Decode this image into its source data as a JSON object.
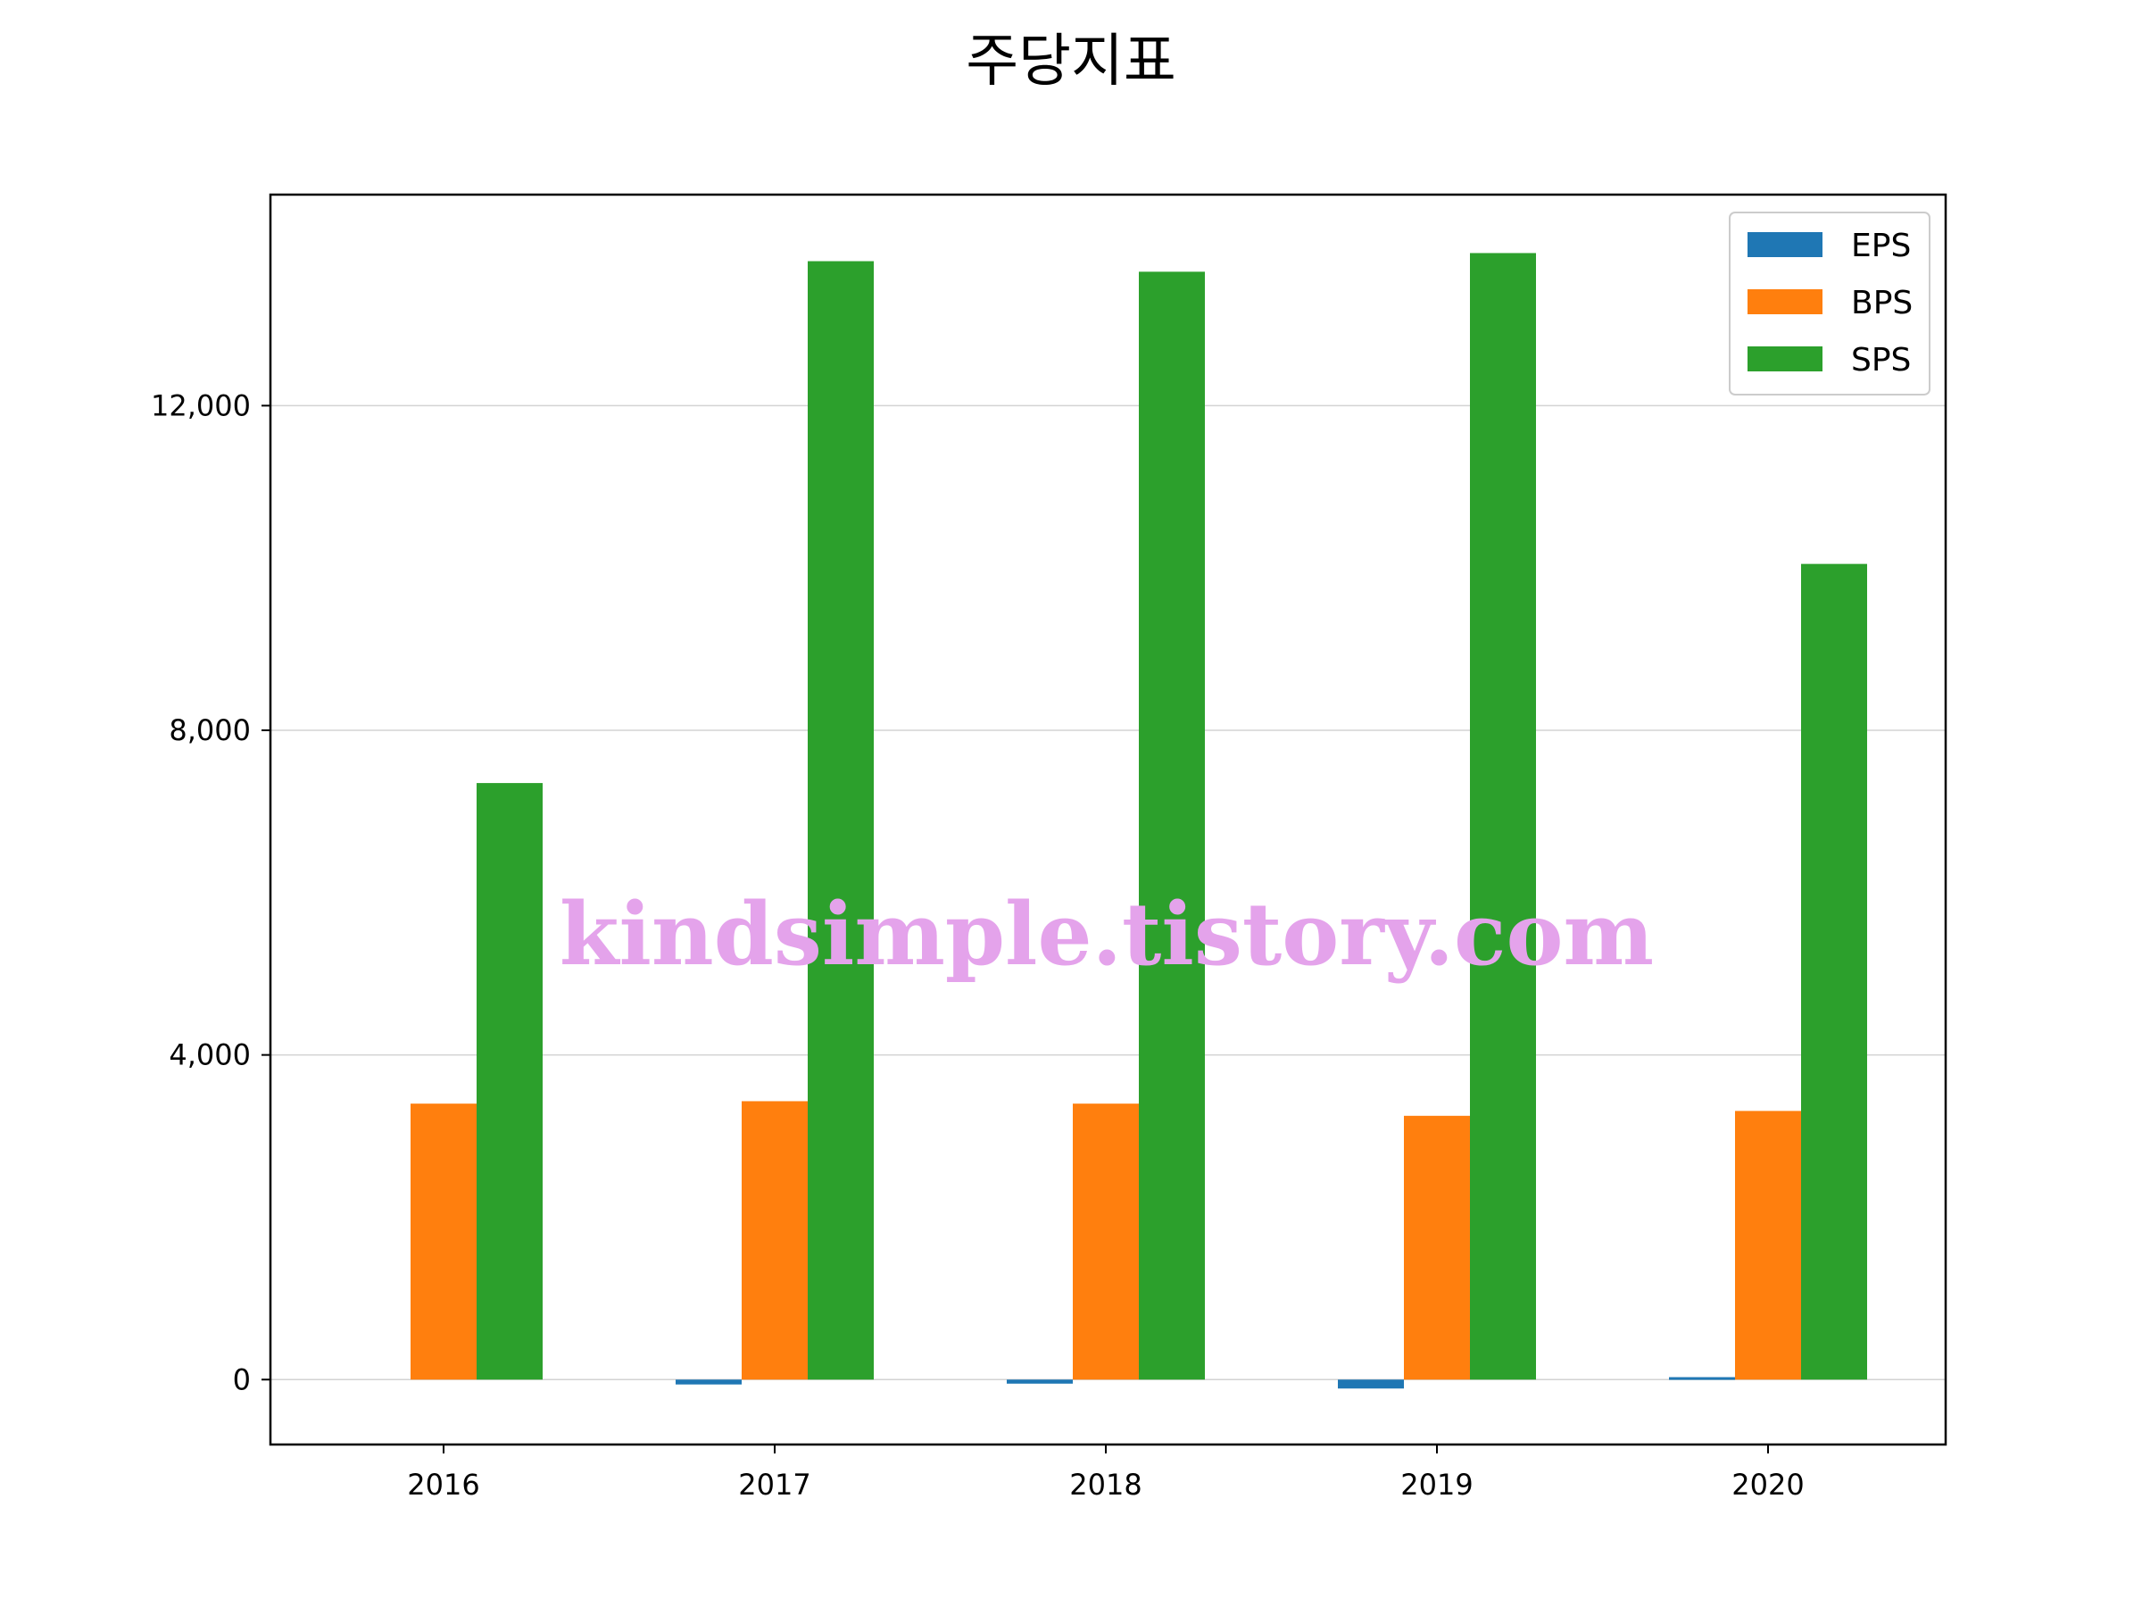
{
  "colors": {
    "EPS": "#1f77b4",
    "BPS": "#ff7f0e",
    "SPS": "#2ca02c",
    "grid": "#d3d3d3",
    "watermark": "#e4a3eb"
  },
  "watermark": "kindsimple.tistory.com",
  "chart_data": {
    "type": "bar",
    "title": "주당지표",
    "xlabel": "",
    "ylabel": "",
    "categories": [
      "2016",
      "2017",
      "2018",
      "2019",
      "2020"
    ],
    "series": [
      {
        "name": "EPS",
        "values": [
          0,
          -60,
          -50,
          -110,
          30
        ]
      },
      {
        "name": "BPS",
        "values": [
          3400,
          3430,
          3400,
          3250,
          3310
        ]
      },
      {
        "name": "SPS",
        "values": [
          7350,
          13780,
          13650,
          13880,
          10050
        ]
      }
    ],
    "yticks": [
      0,
      4000,
      8000,
      12000
    ],
    "ytick_labels": [
      "0",
      "4,000",
      "8,000",
      "12,000"
    ],
    "ylim": [
      -800,
      14600
    ],
    "grid": "horizontal",
    "legend_position": "top-right"
  }
}
